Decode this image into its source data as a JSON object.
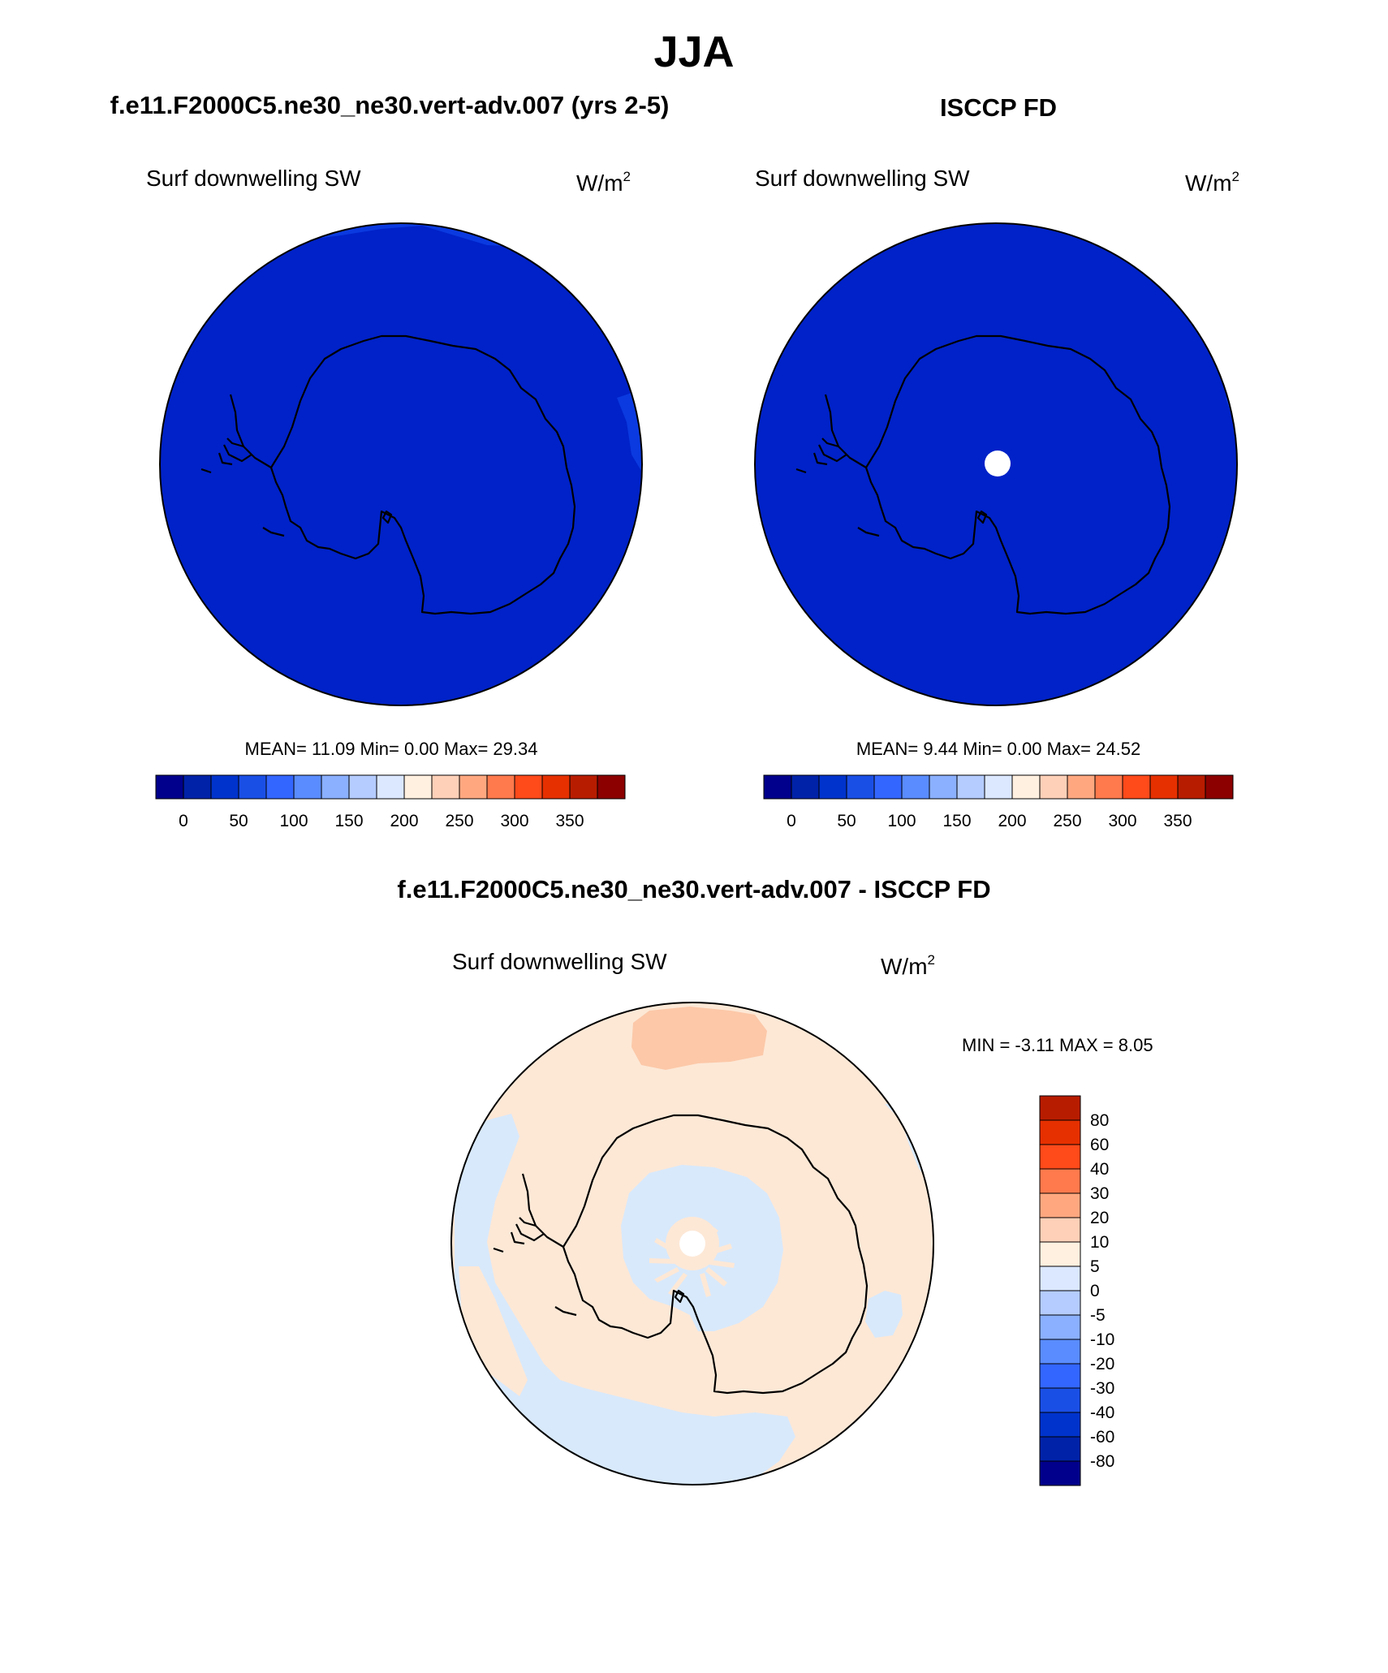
{
  "figure": {
    "title": "JJA",
    "panels": [
      {
        "title": "f.e11.F2000C5.ne30_ne30.vert-adv.007 (yrs 2-5)",
        "variable": "Surf downwelling SW",
        "units": "W/m",
        "units_sup": "2",
        "stats": "MEAN=  11.09  Min=   0.00  Max=  29.34",
        "colorbar": {
          "orientation": "horizontal",
          "colors": [
            "#00008c",
            "#0022a8",
            "#0033cc",
            "#1a4fe6",
            "#3366ff",
            "#5a8cff",
            "#8ab0ff",
            "#b4ccff",
            "#dbe8ff",
            "#fff0e0",
            "#ffd0b8",
            "#ffa880",
            "#ff7a4d",
            "#ff4a1a",
            "#e63000",
            "#b81c00",
            "#8c0000"
          ],
          "tick_labels": [
            "0",
            "50",
            "100",
            "150",
            "200",
            "250",
            "300",
            "350"
          ]
        }
      },
      {
        "title": "ISCCP FD",
        "variable": "Surf downwelling SW",
        "units": "W/m",
        "units_sup": "2",
        "stats": "MEAN=   9.44  Min=   0.00  Max=  24.52",
        "colorbar": {
          "orientation": "horizontal",
          "colors": [
            "#00008c",
            "#0022a8",
            "#0033cc",
            "#1a4fe6",
            "#3366ff",
            "#5a8cff",
            "#8ab0ff",
            "#b4ccff",
            "#dbe8ff",
            "#fff0e0",
            "#ffd0b8",
            "#ffa880",
            "#ff7a4d",
            "#ff4a1a",
            "#e63000",
            "#b81c00",
            "#8c0000"
          ],
          "tick_labels": [
            "0",
            "50",
            "100",
            "150",
            "200",
            "250",
            "300",
            "350"
          ]
        }
      },
      {
        "title": "f.e11.F2000C5.ne30_ne30.vert-adv.007 - ISCCP FD",
        "variable": "Surf downwelling SW",
        "units": "W/m",
        "units_sup": "2",
        "stats": "MIN =  -3.11 MAX =   8.05",
        "colorbar": {
          "orientation": "vertical",
          "colors": [
            "#00008c",
            "#0022a8",
            "#0033cc",
            "#1a4fe6",
            "#3366ff",
            "#5a8cff",
            "#8ab0ff",
            "#b4ccff",
            "#dbe8ff",
            "#fff0e0",
            "#ffd0b8",
            "#ffa880",
            "#ff7a4d",
            "#ff4a1a",
            "#e63000",
            "#b81c00"
          ],
          "tick_labels": [
            "80",
            "60",
            "40",
            "30",
            "20",
            "10",
            "5",
            "0",
            "-5",
            "-10",
            "-20",
            "-30",
            "-40",
            "-60",
            "-80"
          ]
        }
      }
    ],
    "map_colors": {
      "ocean_blue": "#0022c8",
      "patch_blue": "#0a3ae0",
      "diff_base": "#fde8d6",
      "diff_negative": "#d8e9fb",
      "diff_positive": "#fcc8a8",
      "missing": "#ffffff",
      "coastline": "#000000"
    }
  }
}
